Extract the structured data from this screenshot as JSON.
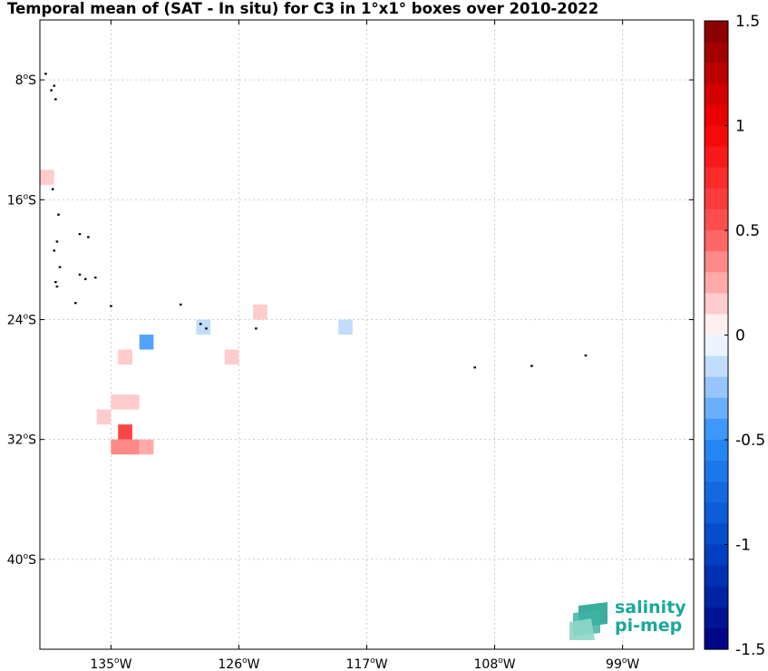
{
  "title": "Temporal mean of (SAT - In situ) for C3 in 1°x1° boxes over 2010-2022",
  "map": {
    "lon_range": [
      -140,
      -94
    ],
    "lat_range": [
      -46,
      -4
    ],
    "x_ticks": [
      {
        "value": -135,
        "label": "135",
        "suffix": "W"
      },
      {
        "value": -126,
        "label": "126",
        "suffix": "W"
      },
      {
        "value": -117,
        "label": "117",
        "suffix": "W"
      },
      {
        "value": -108,
        "label": "108",
        "suffix": "W"
      },
      {
        "value": -99,
        "label": "99",
        "suffix": "W"
      }
    ],
    "y_ticks": [
      {
        "value": -8,
        "label": "8",
        "suffix": "S"
      },
      {
        "value": -16,
        "label": "16",
        "suffix": "S"
      },
      {
        "value": -24,
        "label": "24",
        "suffix": "S"
      },
      {
        "value": -32,
        "label": "32",
        "suffix": "S"
      },
      {
        "value": -40,
        "label": "40",
        "suffix": "S"
      }
    ],
    "grid": true,
    "cells": [
      {
        "lon": -140,
        "lat": -14,
        "value": 0.15
      },
      {
        "lon": -129,
        "lat": -24,
        "value": -0.15
      },
      {
        "lon": -125,
        "lat": -23,
        "value": 0.15
      },
      {
        "lon": -119,
        "lat": -24,
        "value": -0.15
      },
      {
        "lon": -133,
        "lat": -25,
        "value": -0.4
      },
      {
        "lon": -134.5,
        "lat": -26,
        "value": 0.15
      },
      {
        "lon": -127,
        "lat": -26,
        "value": 0.15
      },
      {
        "lon": -135,
        "lat": -29,
        "value": 0.15
      },
      {
        "lon": -134,
        "lat": -29,
        "value": 0.15
      },
      {
        "lon": -136,
        "lat": -30,
        "value": 0.15
      },
      {
        "lon": -134.5,
        "lat": -31,
        "value": 0.6
      },
      {
        "lon": -135,
        "lat": -32,
        "value": 0.35
      },
      {
        "lon": -134,
        "lat": -32,
        "value": 0.35
      },
      {
        "lon": -133,
        "lat": -32,
        "value": 0.25
      }
    ],
    "islands": [
      {
        "lon": -139.6,
        "lat": -7.6
      },
      {
        "lon": -139.0,
        "lat": -8.4
      },
      {
        "lon": -139.2,
        "lat": -8.7
      },
      {
        "lon": -138.9,
        "lat": -9.3
      },
      {
        "lon": -139.1,
        "lat": -15.3
      },
      {
        "lon": -138.7,
        "lat": -17.0
      },
      {
        "lon": -137.2,
        "lat": -18.3
      },
      {
        "lon": -136.6,
        "lat": -18.5
      },
      {
        "lon": -138.8,
        "lat": -18.8
      },
      {
        "lon": -139.0,
        "lat": -19.4
      },
      {
        "lon": -138.6,
        "lat": -20.5
      },
      {
        "lon": -137.2,
        "lat": -21.0
      },
      {
        "lon": -136.8,
        "lat": -21.3
      },
      {
        "lon": -136.1,
        "lat": -21.2
      },
      {
        "lon": -138.9,
        "lat": -21.5
      },
      {
        "lon": -138.8,
        "lat": -21.8
      },
      {
        "lon": -137.5,
        "lat": -22.9
      },
      {
        "lon": -135.0,
        "lat": -23.1
      },
      {
        "lon": -130.1,
        "lat": -23.0
      },
      {
        "lon": -128.7,
        "lat": -24.3
      },
      {
        "lon": -124.8,
        "lat": -24.6
      },
      {
        "lon": -128.3,
        "lat": -24.6
      },
      {
        "lon": -105.4,
        "lat": -27.1
      },
      {
        "lon": -101.6,
        "lat": -26.4
      },
      {
        "lon": -109.4,
        "lat": -27.2
      }
    ]
  },
  "colorbar": {
    "min": -1.5,
    "max": 1.5,
    "step": 0.1,
    "tick_labels": [
      "1.5",
      "1",
      "0.5",
      "0",
      "-0.5",
      "-1",
      "-1.5"
    ],
    "tick_values": [
      1.5,
      1,
      0.5,
      0,
      -0.5,
      -1,
      -1.5
    ]
  },
  "logo": {
    "line1": "salinity",
    "line2": "pi-mep"
  }
}
